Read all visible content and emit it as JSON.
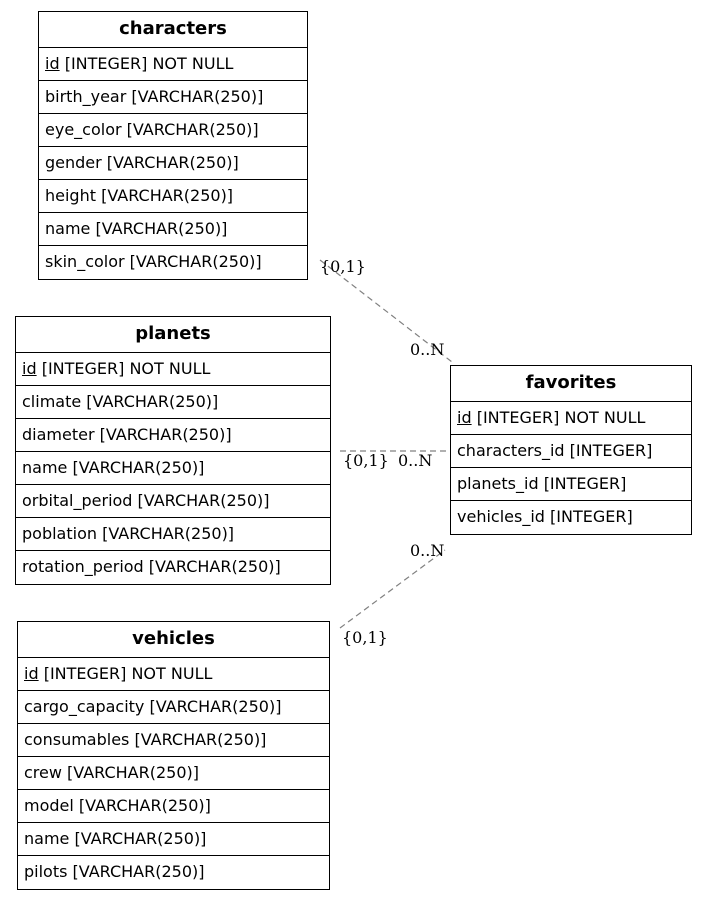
{
  "entities": {
    "characters": {
      "title": "characters",
      "pk": "id",
      "pk_rest": " [INTEGER] NOT NULL",
      "attrs": [
        "birth_year [VARCHAR(250)]",
        "eye_color [VARCHAR(250)]",
        "gender [VARCHAR(250)]",
        "height [VARCHAR(250)]",
        "name [VARCHAR(250)]",
        "skin_color [VARCHAR(250)]"
      ]
    },
    "planets": {
      "title": "planets",
      "pk": "id",
      "pk_rest": " [INTEGER] NOT NULL",
      "attrs": [
        "climate [VARCHAR(250)]",
        "diameter [VARCHAR(250)]",
        "name [VARCHAR(250)]",
        "orbital_period [VARCHAR(250)]",
        "poblation [VARCHAR(250)]",
        "rotation_period [VARCHAR(250)]"
      ]
    },
    "vehicles": {
      "title": "vehicles",
      "pk": "id",
      "pk_rest": " [INTEGER] NOT NULL",
      "attrs": [
        "cargo_capacity [VARCHAR(250)]",
        "consumables [VARCHAR(250)]",
        "crew [VARCHAR(250)]",
        "model [VARCHAR(250)]",
        "name [VARCHAR(250)]",
        "pilots [VARCHAR(250)]"
      ]
    },
    "favorites": {
      "title": "favorites",
      "pk": "id",
      "pk_rest": " [INTEGER] NOT NULL",
      "attrs": [
        "characters_id [INTEGER]",
        "planets_id [INTEGER]",
        "vehicles_id [INTEGER]"
      ]
    }
  },
  "relations": [
    {
      "from": "characters",
      "to": "favorites",
      "from_card": "{0,1}",
      "to_card": "0..N"
    },
    {
      "from": "planets",
      "to": "favorites",
      "from_card": "{0,1}",
      "to_card": "0..N"
    },
    {
      "from": "vehicles",
      "to": "favorites",
      "from_card": "{0,1}",
      "to_card": "0..N"
    }
  ],
  "colors": {
    "edge": "#808080",
    "border": "#000000"
  }
}
